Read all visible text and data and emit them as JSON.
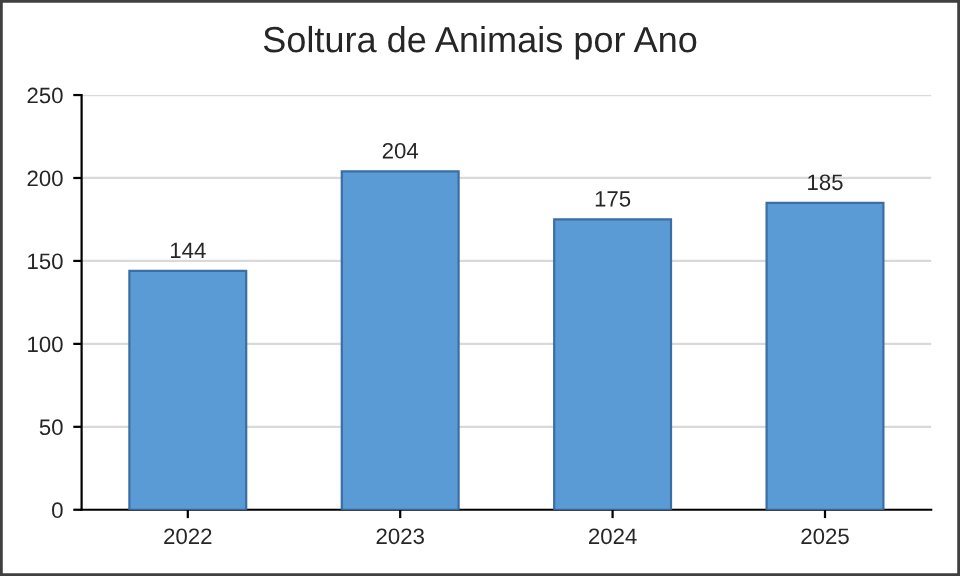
{
  "chart_data": {
    "type": "bar",
    "title": "Soltura de Animais por Ano",
    "categories": [
      "2022",
      "2023",
      "2024",
      "2025"
    ],
    "series": [
      {
        "color": "#5b9bd5",
        "values": [
          144,
          204,
          175,
          185
        ]
      }
    ],
    "ylim": [
      0,
      250
    ],
    "yticks": [
      0,
      50,
      100,
      150,
      200,
      250
    ],
    "grid": "y",
    "data_labels": true
  }
}
